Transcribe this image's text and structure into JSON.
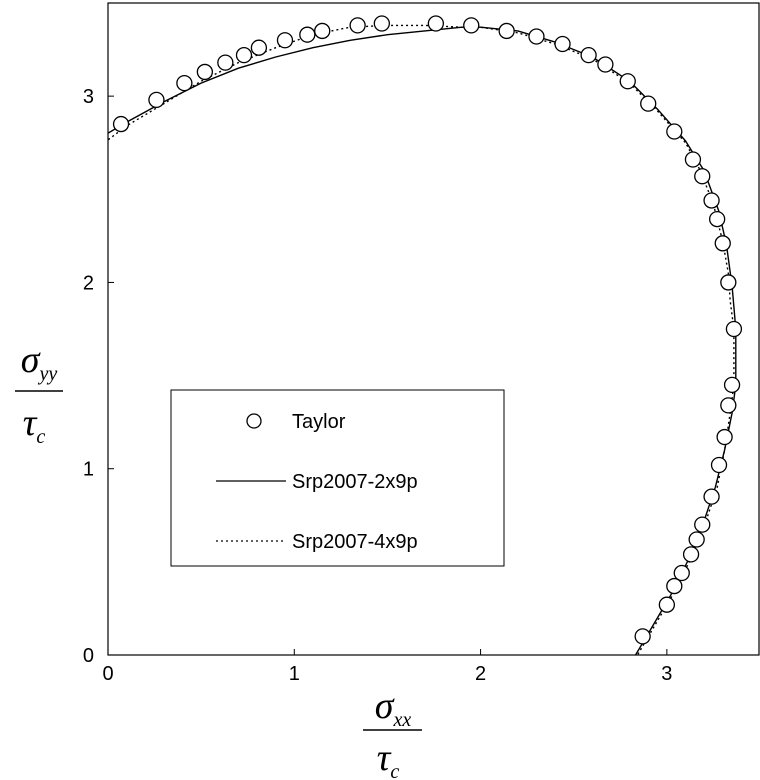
{
  "chart_data": {
    "type": "scatter",
    "xlim": [
      0,
      3.5
    ],
    "ylim": [
      0,
      3.5
    ],
    "x_ticks": [
      "0",
      "1",
      "2",
      "3"
    ],
    "y_ticks": [
      "0",
      "1",
      "2",
      "3"
    ],
    "xlabel": {
      "numerator": "σ",
      "numerator_sub": "xx",
      "denominator": "τ",
      "denominator_sub": "c"
    },
    "ylabel": {
      "numerator": "σ",
      "numerator_sub": "yy",
      "denominator": "τ",
      "denominator_sub": "c"
    },
    "grid": false,
    "legend_position": "center-left",
    "series": [
      {
        "name": "Taylor",
        "style": "open-circle",
        "points": [
          [
            0.07,
            2.85
          ],
          [
            0.26,
            2.98
          ],
          [
            0.41,
            3.07
          ],
          [
            0.52,
            3.13
          ],
          [
            0.63,
            3.18
          ],
          [
            0.73,
            3.22
          ],
          [
            0.81,
            3.26
          ],
          [
            0.95,
            3.3
          ],
          [
            1.07,
            3.33
          ],
          [
            1.15,
            3.35
          ],
          [
            1.34,
            3.38
          ],
          [
            1.47,
            3.39
          ],
          [
            1.76,
            3.39
          ],
          [
            1.95,
            3.38
          ],
          [
            2.14,
            3.35
          ],
          [
            2.3,
            3.32
          ],
          [
            2.44,
            3.28
          ],
          [
            2.58,
            3.22
          ],
          [
            2.67,
            3.17
          ],
          [
            2.79,
            3.08
          ],
          [
            2.9,
            2.96
          ],
          [
            3.04,
            2.81
          ],
          [
            3.14,
            2.66
          ],
          [
            3.19,
            2.57
          ],
          [
            3.24,
            2.44
          ],
          [
            3.27,
            2.34
          ],
          [
            3.3,
            2.21
          ],
          [
            3.33,
            2.0
          ],
          [
            3.36,
            1.75
          ],
          [
            3.35,
            1.45
          ],
          [
            3.33,
            1.34
          ],
          [
            3.31,
            1.17
          ],
          [
            3.28,
            1.02
          ],
          [
            3.24,
            0.85
          ],
          [
            3.19,
            0.7
          ],
          [
            3.16,
            0.62
          ],
          [
            3.13,
            0.54
          ],
          [
            3.08,
            0.44
          ],
          [
            3.04,
            0.37
          ],
          [
            3.0,
            0.27
          ],
          [
            2.87,
            0.1
          ]
        ]
      },
      {
        "name": "Srp2007-2x9p",
        "style": "solid",
        "points": [
          [
            -0.02,
            2.79
          ],
          [
            0.1,
            2.86
          ],
          [
            0.3,
            2.97
          ],
          [
            0.5,
            3.07
          ],
          [
            0.7,
            3.15
          ],
          [
            0.9,
            3.21
          ],
          [
            1.1,
            3.26
          ],
          [
            1.3,
            3.3
          ],
          [
            1.5,
            3.33
          ],
          [
            1.7,
            3.35
          ],
          [
            1.9,
            3.37
          ],
          [
            2.0,
            3.37
          ],
          [
            2.2,
            3.35
          ],
          [
            2.4,
            3.29
          ],
          [
            2.6,
            3.21
          ],
          [
            2.8,
            3.08
          ],
          [
            2.95,
            2.93
          ],
          [
            3.1,
            2.76
          ],
          [
            3.2,
            2.6
          ],
          [
            3.28,
            2.38
          ],
          [
            3.32,
            2.2
          ],
          [
            3.35,
            1.98
          ],
          [
            3.37,
            1.75
          ],
          [
            3.37,
            1.45
          ],
          [
            3.35,
            1.3
          ],
          [
            3.31,
            1.1
          ],
          [
            3.26,
            0.9
          ],
          [
            3.2,
            0.72
          ],
          [
            3.12,
            0.52
          ],
          [
            3.02,
            0.32
          ],
          [
            2.92,
            0.15
          ],
          [
            2.85,
            0.03
          ],
          [
            2.82,
            -0.02
          ]
        ]
      },
      {
        "name": "Srp2007-4x9p",
        "style": "dotted",
        "points": [
          [
            -0.02,
            2.75
          ],
          [
            0.1,
            2.84
          ],
          [
            0.3,
            2.96
          ],
          [
            0.5,
            3.08
          ],
          [
            0.7,
            3.18
          ],
          [
            0.9,
            3.26
          ],
          [
            1.1,
            3.33
          ],
          [
            1.3,
            3.37
          ],
          [
            1.5,
            3.38
          ],
          [
            1.7,
            3.38
          ],
          [
            1.9,
            3.37
          ],
          [
            2.0,
            3.37
          ],
          [
            2.2,
            3.34
          ],
          [
            2.4,
            3.28
          ],
          [
            2.6,
            3.2
          ],
          [
            2.8,
            3.07
          ],
          [
            2.95,
            2.92
          ],
          [
            3.1,
            2.75
          ],
          [
            3.18,
            2.6
          ],
          [
            3.25,
            2.42
          ],
          [
            3.3,
            2.22
          ],
          [
            3.33,
            2.05
          ],
          [
            3.34,
            1.9
          ],
          [
            3.36,
            1.75
          ],
          [
            3.36,
            1.45
          ],
          [
            3.34,
            1.3
          ],
          [
            3.31,
            1.1
          ],
          [
            3.27,
            0.9
          ],
          [
            3.21,
            0.72
          ],
          [
            3.13,
            0.52
          ],
          [
            3.03,
            0.32
          ],
          [
            2.93,
            0.15
          ],
          [
            2.86,
            0.03
          ],
          [
            2.83,
            -0.02
          ]
        ]
      }
    ]
  }
}
